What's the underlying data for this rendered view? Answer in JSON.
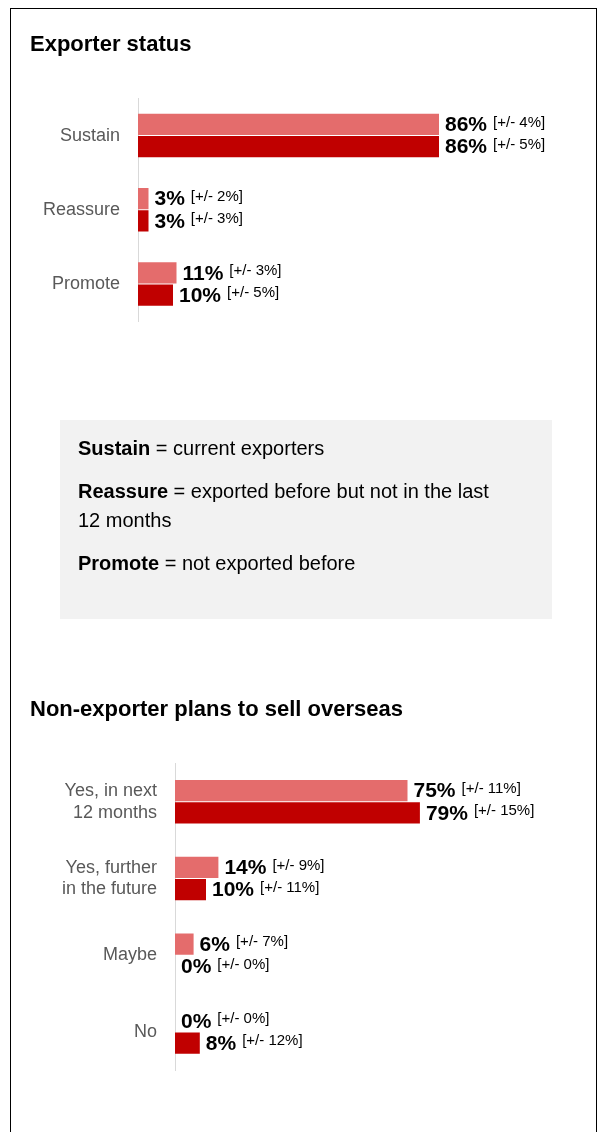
{
  "chart_data": [
    {
      "type": "bar",
      "orientation": "horizontal",
      "title": "Exporter status",
      "categories": [
        "Sustain",
        "Reassure",
        "Promote"
      ],
      "tick_labels": "y",
      "series": [
        {
          "color": "#e46c6c",
          "values": [
            86,
            3,
            11
          ],
          "value_labels": [
            "86% [+/- 4%]",
            "3% [+/- 2%]",
            "11% [+/- 3%]"
          ]
        },
        {
          "color": "#c00000",
          "values": [
            86,
            3,
            10
          ],
          "value_labels": [
            "86% [+/- 5%]",
            "3% [+/- 3%]",
            "10% [+/- 5%]"
          ]
        }
      ]
    },
    {
      "type": "other",
      "annotations": [
        "Sustain = current exporters",
        "Reassure = exported before but not in the last 12 months",
        "Promote = not exported before"
      ]
    },
    {
      "type": "bar",
      "orientation": "horizontal",
      "title": "Non-exporter plans to sell overseas",
      "categories": [
        "Yes, in next 12 months",
        "Yes, further in the future",
        "Maybe",
        "No"
      ],
      "tick_labels": "y",
      "series": [
        {
          "color": "#e46c6c",
          "values": [
            75,
            14,
            6,
            0
          ],
          "value_labels": [
            "75% [+/- 11%]",
            "14% [+/- 9%]",
            "6% [+/- 7%]",
            "0% [+/- 0%]"
          ]
        },
        {
          "color": "#c00000",
          "values": [
            79,
            10,
            0,
            8
          ],
          "value_labels": [
            "79% [+/- 15%]",
            "10% [+/- 11%]",
            "0% [+/- 0%]",
            "8% [+/- 12%]"
          ]
        }
      ]
    }
  ]
}
